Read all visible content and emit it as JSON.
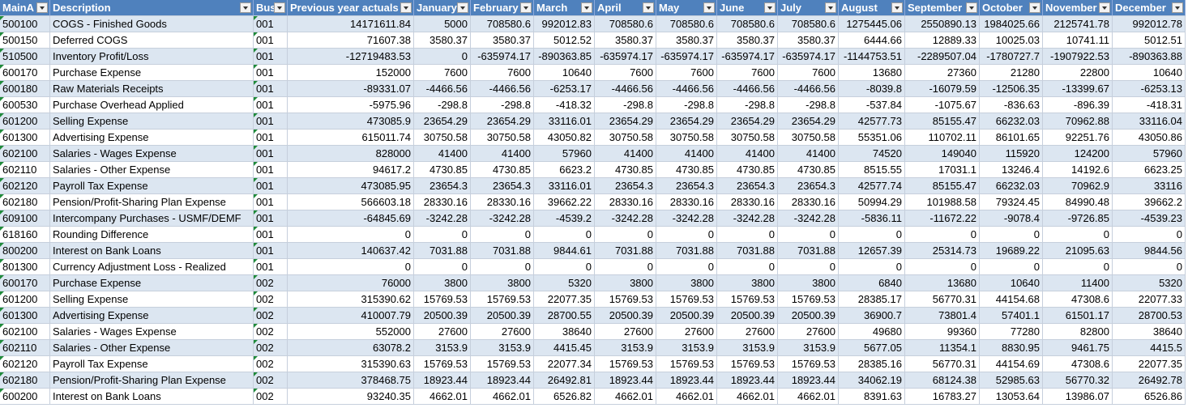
{
  "table": {
    "headers": [
      "MainA",
      "Description",
      "Bus",
      "Previous year actuals",
      "January",
      "February",
      "March",
      "April",
      "May",
      "June",
      "July",
      "August",
      "September",
      "October",
      "November",
      "December"
    ],
    "rows": [
      [
        "500100",
        "COGS - Finished Goods",
        "001",
        "14171611.84",
        "5000",
        "708580.6",
        "992012.83",
        "708580.6",
        "708580.6",
        "708580.6",
        "708580.6",
        "1275445.06",
        "2550890.13",
        "1984025.66",
        "2125741.78",
        "992012.78"
      ],
      [
        "500150",
        "Deferred COGS",
        "001",
        "71607.38",
        "3580.37",
        "3580.37",
        "5012.52",
        "3580.37",
        "3580.37",
        "3580.37",
        "3580.37",
        "6444.66",
        "12889.33",
        "10025.03",
        "10741.11",
        "5012.51"
      ],
      [
        "510500",
        "Inventory Profit/Loss",
        "001",
        "-12719483.53",
        "0",
        "-635974.17",
        "-890363.85",
        "-635974.17",
        "-635974.17",
        "-635974.17",
        "-635974.17",
        "-1144753.51",
        "-2289507.04",
        "-1780727.7",
        "-1907922.53",
        "-890363.88"
      ],
      [
        "600170",
        "Purchase Expense",
        "001",
        "152000",
        "7600",
        "7600",
        "10640",
        "7600",
        "7600",
        "7600",
        "7600",
        "13680",
        "27360",
        "21280",
        "22800",
        "10640"
      ],
      [
        "600180",
        "Raw Materials Receipts",
        "001",
        "-89331.07",
        "-4466.56",
        "-4466.56",
        "-6253.17",
        "-4466.56",
        "-4466.56",
        "-4466.56",
        "-4466.56",
        "-8039.8",
        "-16079.59",
        "-12506.35",
        "-13399.67",
        "-6253.13"
      ],
      [
        "600530",
        "Purchase Overhead Applied",
        "001",
        "-5975.96",
        "-298.8",
        "-298.8",
        "-418.32",
        "-298.8",
        "-298.8",
        "-298.8",
        "-298.8",
        "-537.84",
        "-1075.67",
        "-836.63",
        "-896.39",
        "-418.31"
      ],
      [
        "601200",
        "Selling Expense",
        "001",
        "473085.9",
        "23654.29",
        "23654.29",
        "33116.01",
        "23654.29",
        "23654.29",
        "23654.29",
        "23654.29",
        "42577.73",
        "85155.47",
        "66232.03",
        "70962.88",
        "33116.04"
      ],
      [
        "601300",
        "Advertising Expense",
        "001",
        "615011.74",
        "30750.58",
        "30750.58",
        "43050.82",
        "30750.58",
        "30750.58",
        "30750.58",
        "30750.58",
        "55351.06",
        "110702.11",
        "86101.65",
        "92251.76",
        "43050.86"
      ],
      [
        "602100",
        "Salaries - Wages Expense",
        "001",
        "828000",
        "41400",
        "41400",
        "57960",
        "41400",
        "41400",
        "41400",
        "41400",
        "74520",
        "149040",
        "115920",
        "124200",
        "57960"
      ],
      [
        "602110",
        "Salaries - Other Expense",
        "001",
        "94617.2",
        "4730.85",
        "4730.85",
        "6623.2",
        "4730.85",
        "4730.85",
        "4730.85",
        "4730.85",
        "8515.55",
        "17031.1",
        "13246.4",
        "14192.6",
        "6623.25"
      ],
      [
        "602120",
        "Payroll Tax Expense",
        "001",
        "473085.95",
        "23654.3",
        "23654.3",
        "33116.01",
        "23654.3",
        "23654.3",
        "23654.3",
        "23654.3",
        "42577.74",
        "85155.47",
        "66232.03",
        "70962.9",
        "33116"
      ],
      [
        "602180",
        "Pension/Profit-Sharing Plan Expense",
        "001",
        "566603.18",
        "28330.16",
        "28330.16",
        "39662.22",
        "28330.16",
        "28330.16",
        "28330.16",
        "28330.16",
        "50994.29",
        "101988.58",
        "79324.45",
        "84990.48",
        "39662.2"
      ],
      [
        "609100",
        "Intercompany Purchases - USMF/DEMF",
        "001",
        "-64845.69",
        "-3242.28",
        "-3242.28",
        "-4539.2",
        "-3242.28",
        "-3242.28",
        "-3242.28",
        "-3242.28",
        "-5836.11",
        "-11672.22",
        "-9078.4",
        "-9726.85",
        "-4539.23"
      ],
      [
        "618160",
        "Rounding Difference",
        "001",
        "0",
        "0",
        "0",
        "0",
        "0",
        "0",
        "0",
        "0",
        "0",
        "0",
        "0",
        "0",
        "0"
      ],
      [
        "800200",
        "Interest on Bank Loans",
        "001",
        "140637.42",
        "7031.88",
        "7031.88",
        "9844.61",
        "7031.88",
        "7031.88",
        "7031.88",
        "7031.88",
        "12657.39",
        "25314.73",
        "19689.22",
        "21095.63",
        "9844.56"
      ],
      [
        "801300",
        "Currency Adjustment Loss - Realized",
        "001",
        "0",
        "0",
        "0",
        "0",
        "0",
        "0",
        "0",
        "0",
        "0",
        "0",
        "0",
        "0",
        "0"
      ],
      [
        "600170",
        "Purchase Expense",
        "002",
        "76000",
        "3800",
        "3800",
        "5320",
        "3800",
        "3800",
        "3800",
        "3800",
        "6840",
        "13680",
        "10640",
        "11400",
        "5320"
      ],
      [
        "601200",
        "Selling Expense",
        "002",
        "315390.62",
        "15769.53",
        "15769.53",
        "22077.35",
        "15769.53",
        "15769.53",
        "15769.53",
        "15769.53",
        "28385.17",
        "56770.31",
        "44154.68",
        "47308.6",
        "22077.33"
      ],
      [
        "601300",
        "Advertising Expense",
        "002",
        "410007.79",
        "20500.39",
        "20500.39",
        "28700.55",
        "20500.39",
        "20500.39",
        "20500.39",
        "20500.39",
        "36900.7",
        "73801.4",
        "57401.1",
        "61501.17",
        "28700.53"
      ],
      [
        "602100",
        "Salaries - Wages Expense",
        "002",
        "552000",
        "27600",
        "27600",
        "38640",
        "27600",
        "27600",
        "27600",
        "27600",
        "49680",
        "99360",
        "77280",
        "82800",
        "38640"
      ],
      [
        "602110",
        "Salaries - Other Expense",
        "002",
        "63078.2",
        "3153.9",
        "3153.9",
        "4415.45",
        "3153.9",
        "3153.9",
        "3153.9",
        "3153.9",
        "5677.05",
        "11354.1",
        "8830.95",
        "9461.75",
        "4415.5"
      ],
      [
        "602120",
        "Payroll Tax Expense",
        "002",
        "315390.63",
        "15769.53",
        "15769.53",
        "22077.34",
        "15769.53",
        "15769.53",
        "15769.53",
        "15769.53",
        "28385.16",
        "56770.31",
        "44154.69",
        "47308.6",
        "22077.35"
      ],
      [
        "602180",
        "Pension/Profit-Sharing Plan Expense",
        "002",
        "378468.75",
        "18923.44",
        "18923.44",
        "26492.81",
        "18923.44",
        "18923.44",
        "18923.44",
        "18923.44",
        "34062.19",
        "68124.38",
        "52985.63",
        "56770.32",
        "26492.78"
      ],
      [
        "600200",
        "Interest on Bank Loans",
        "002",
        "93240.35",
        "4662.01",
        "4662.01",
        "6526.82",
        "4662.01",
        "4662.01",
        "4662.01",
        "4662.01",
        "8391.63",
        "16783.27",
        "13053.64",
        "13986.07",
        "6526.86"
      ]
    ]
  }
}
